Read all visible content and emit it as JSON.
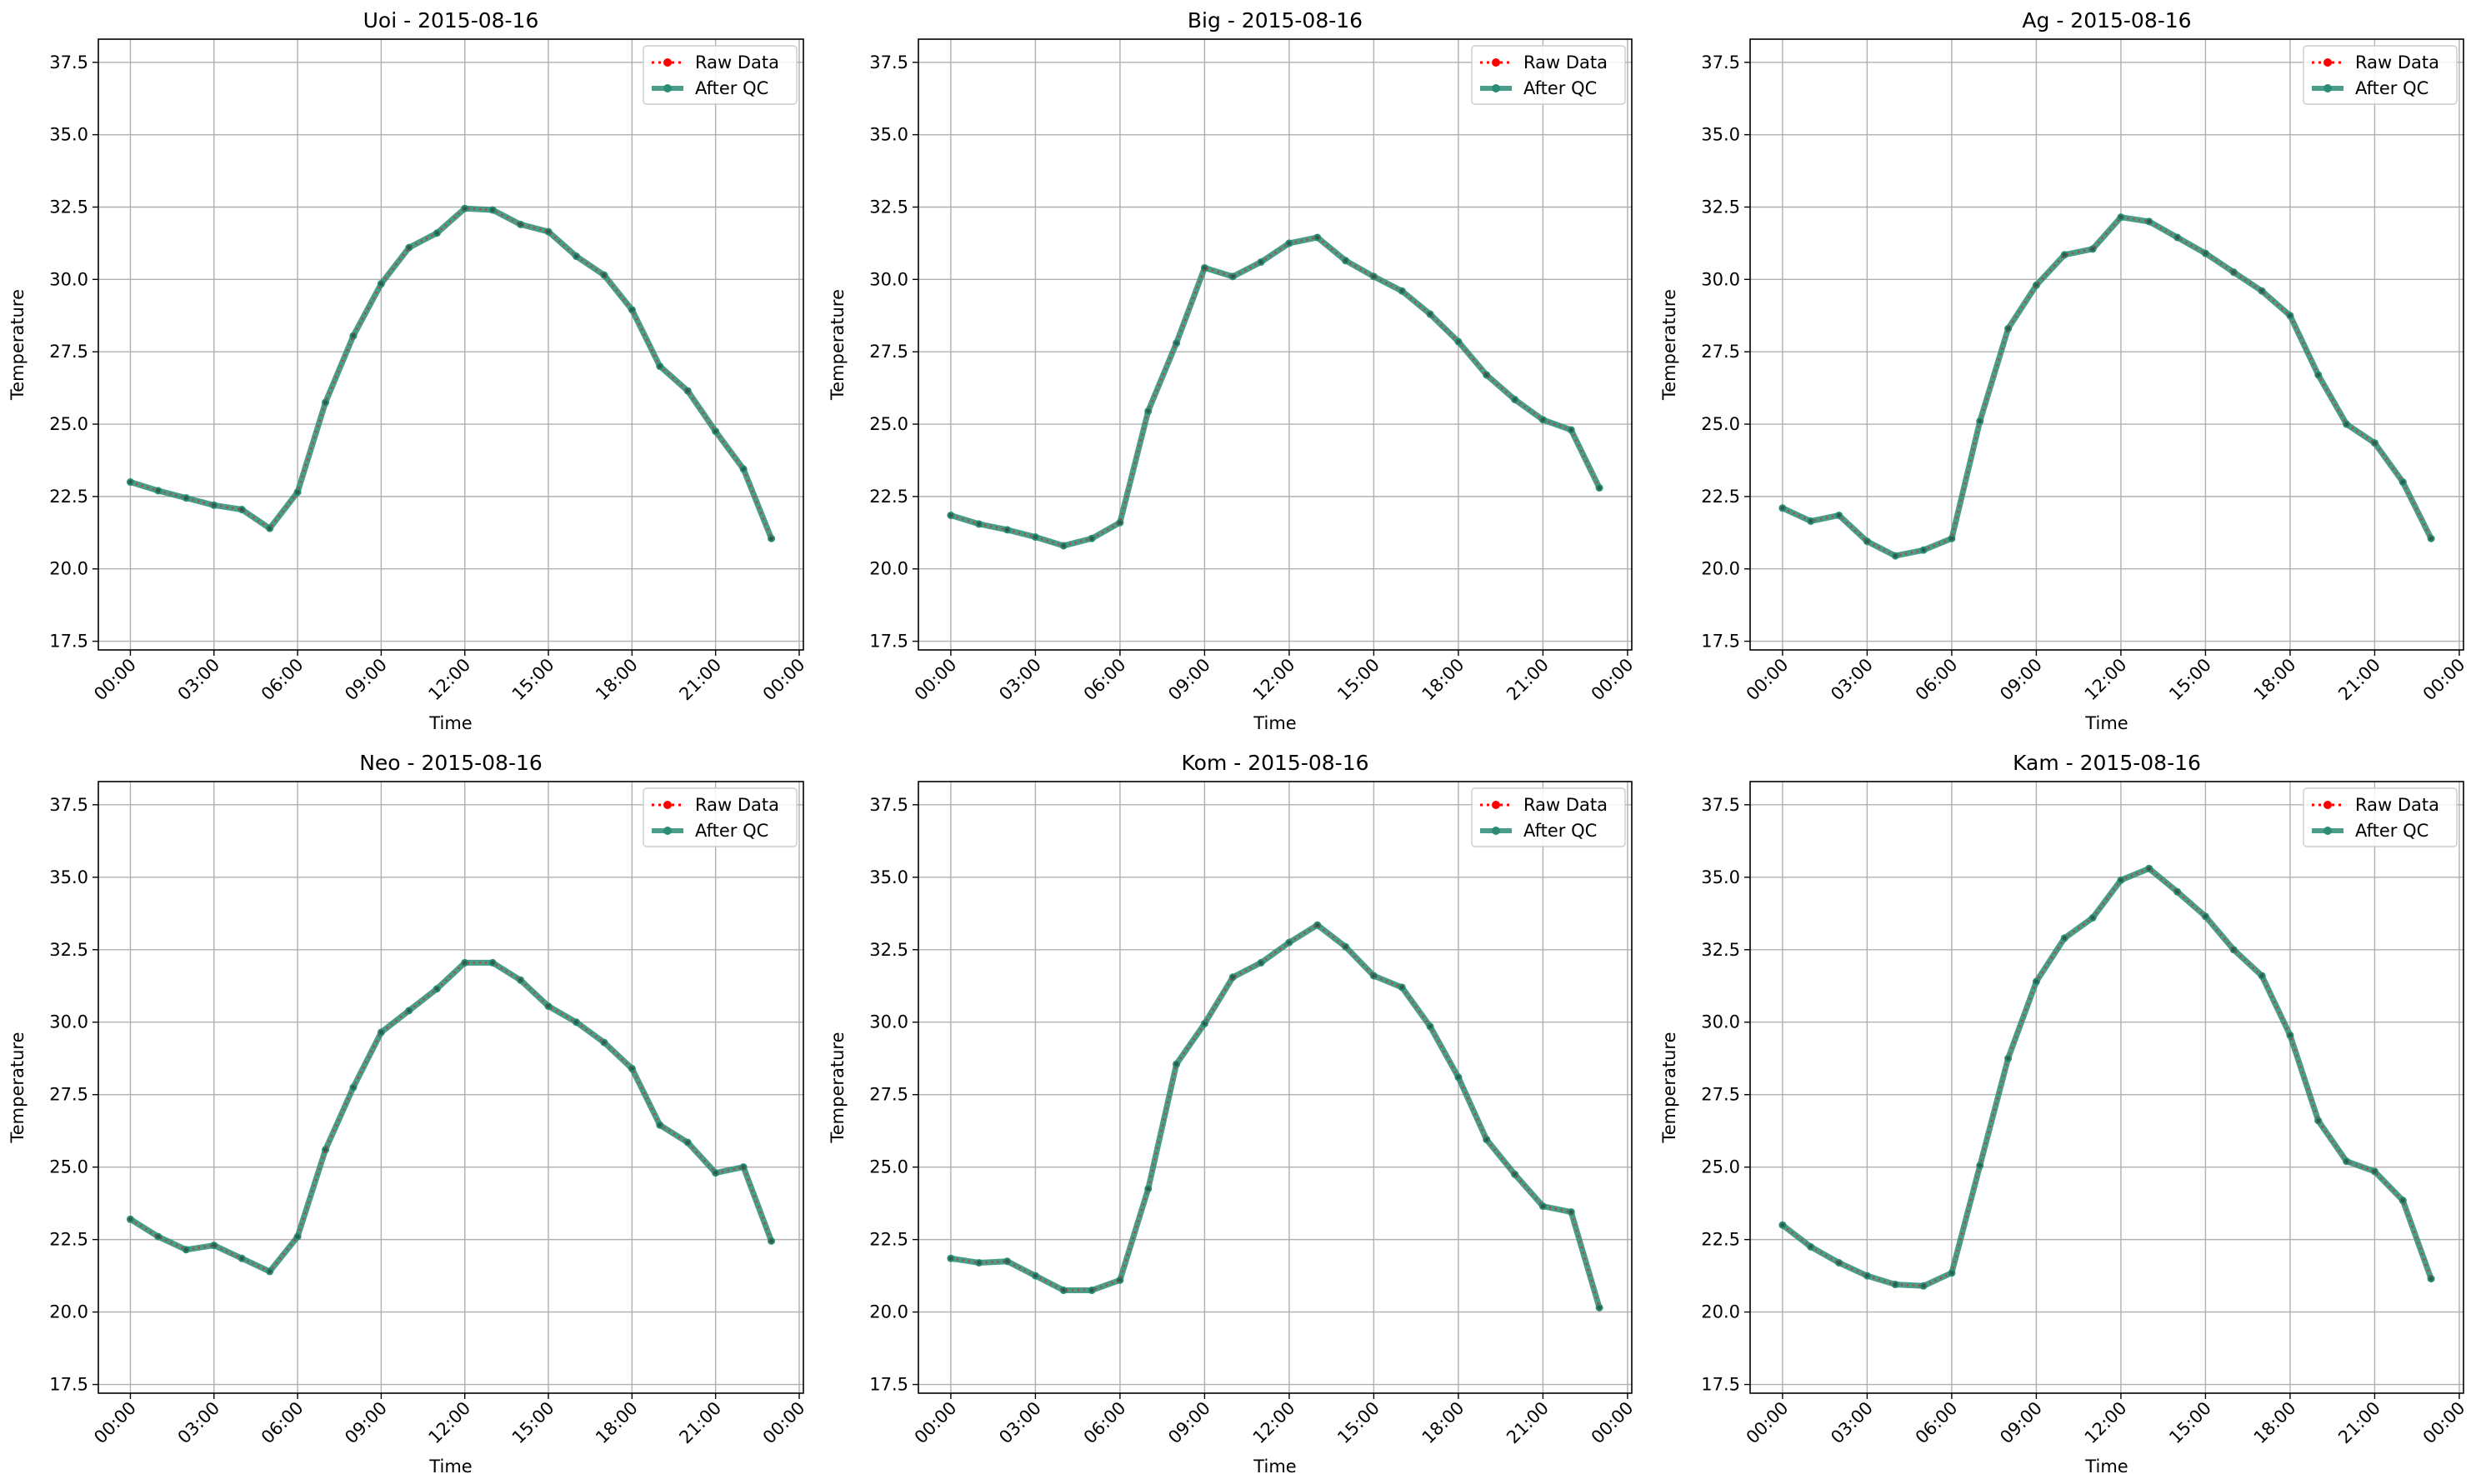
{
  "chart_data": [
    {
      "type": "line",
      "title": "Uoi - 2015-08-16",
      "xlabel": "Time",
      "ylabel": "Temperature",
      "ylim": [
        17.2,
        38.3
      ],
      "xlim_hours": [
        -1.15,
        24.15
      ],
      "yticks": [
        17.5,
        20.0,
        22.5,
        25.0,
        27.5,
        30.0,
        32.5,
        35.0,
        37.5
      ],
      "xtick_hours": [
        0,
        3,
        6,
        9,
        12,
        15,
        18,
        21,
        24
      ],
      "xtick_labels": [
        "00:00",
        "03:00",
        "06:00",
        "09:00",
        "12:00",
        "15:00",
        "18:00",
        "21:00",
        "00:00"
      ],
      "grid": true,
      "legend_position": "top-right",
      "hours": [
        0,
        1,
        2,
        3,
        4,
        5,
        6,
        7,
        8,
        9,
        10,
        11,
        12,
        13,
        14,
        15,
        16,
        17,
        18,
        19,
        20,
        21,
        22,
        23
      ],
      "series": [
        {
          "name": "Raw Data",
          "color": "#ff0000",
          "style": "dotted",
          "values": [
            23.0,
            22.7,
            22.45,
            22.2,
            22.05,
            21.4,
            22.65,
            25.75,
            28.05,
            29.85,
            31.1,
            31.6,
            32.45,
            32.4,
            31.9,
            31.65,
            30.8,
            30.15,
            28.95,
            27.0,
            26.15,
            24.75,
            23.45,
            21.05
          ]
        },
        {
          "name": "After QC",
          "color": "#2a8c74",
          "style": "solid",
          "values": [
            23.0,
            22.7,
            22.45,
            22.2,
            22.05,
            21.4,
            22.65,
            25.75,
            28.05,
            29.85,
            31.1,
            31.6,
            32.45,
            32.4,
            31.9,
            31.65,
            30.8,
            30.15,
            28.95,
            27.0,
            26.15,
            24.75,
            23.45,
            21.05
          ]
        }
      ]
    },
    {
      "type": "line",
      "title": "Big - 2015-08-16",
      "xlabel": "Time",
      "ylabel": "Temperature",
      "ylim": [
        17.2,
        38.3
      ],
      "xlim_hours": [
        -1.15,
        24.15
      ],
      "yticks": [
        17.5,
        20.0,
        22.5,
        25.0,
        27.5,
        30.0,
        32.5,
        35.0,
        37.5
      ],
      "xtick_hours": [
        0,
        3,
        6,
        9,
        12,
        15,
        18,
        21,
        24
      ],
      "xtick_labels": [
        "00:00",
        "03:00",
        "06:00",
        "09:00",
        "12:00",
        "15:00",
        "18:00",
        "21:00",
        "00:00"
      ],
      "grid": true,
      "legend_position": "top-right",
      "hours": [
        0,
        1,
        2,
        3,
        4,
        5,
        6,
        7,
        8,
        9,
        10,
        11,
        12,
        13,
        14,
        15,
        16,
        17,
        18,
        19,
        20,
        21,
        22,
        23
      ],
      "series": [
        {
          "name": "Raw Data",
          "color": "#ff0000",
          "style": "dotted",
          "values": [
            21.85,
            21.55,
            21.35,
            21.1,
            20.8,
            21.05,
            21.6,
            25.45,
            27.8,
            30.4,
            30.1,
            30.6,
            31.25,
            31.45,
            30.65,
            30.1,
            29.6,
            28.8,
            27.85,
            26.7,
            25.85,
            25.15,
            24.8,
            22.8
          ]
        },
        {
          "name": "After QC",
          "color": "#2a8c74",
          "style": "solid",
          "values": [
            21.85,
            21.55,
            21.35,
            21.1,
            20.8,
            21.05,
            21.6,
            25.45,
            27.8,
            30.4,
            30.1,
            30.6,
            31.25,
            31.45,
            30.65,
            30.1,
            29.6,
            28.8,
            27.85,
            26.7,
            25.85,
            25.15,
            24.8,
            22.8
          ]
        }
      ]
    },
    {
      "type": "line",
      "title": "Ag - 2015-08-16",
      "xlabel": "Time",
      "ylabel": "Temperature",
      "ylim": [
        17.2,
        38.3
      ],
      "xlim_hours": [
        -1.15,
        24.15
      ],
      "yticks": [
        17.5,
        20.0,
        22.5,
        25.0,
        27.5,
        30.0,
        32.5,
        35.0,
        37.5
      ],
      "xtick_hours": [
        0,
        3,
        6,
        9,
        12,
        15,
        18,
        21,
        24
      ],
      "xtick_labels": [
        "00:00",
        "03:00",
        "06:00",
        "09:00",
        "12:00",
        "15:00",
        "18:00",
        "21:00",
        "00:00"
      ],
      "grid": true,
      "legend_position": "top-right",
      "hours": [
        0,
        1,
        2,
        3,
        4,
        5,
        6,
        7,
        8,
        9,
        10,
        11,
        12,
        13,
        14,
        15,
        16,
        17,
        18,
        19,
        20,
        21,
        22,
        23
      ],
      "series": [
        {
          "name": "Raw Data",
          "color": "#ff0000",
          "style": "dotted",
          "values": [
            22.1,
            21.65,
            21.85,
            20.95,
            20.45,
            20.65,
            21.05,
            25.1,
            28.3,
            29.8,
            30.85,
            31.05,
            32.15,
            32.0,
            31.45,
            30.9,
            30.25,
            29.6,
            28.75,
            26.7,
            25.0,
            24.35,
            23.0,
            21.05
          ]
        },
        {
          "name": "After QC",
          "color": "#2a8c74",
          "style": "solid",
          "values": [
            22.1,
            21.65,
            21.85,
            20.95,
            20.45,
            20.65,
            21.05,
            25.1,
            28.3,
            29.8,
            30.85,
            31.05,
            32.15,
            32.0,
            31.45,
            30.9,
            30.25,
            29.6,
            28.75,
            26.7,
            25.0,
            24.35,
            23.0,
            21.05
          ]
        }
      ]
    },
    {
      "type": "line",
      "title": "Neo - 2015-08-16",
      "xlabel": "Time",
      "ylabel": "Temperature",
      "ylim": [
        17.2,
        38.3
      ],
      "xlim_hours": [
        -1.15,
        24.15
      ],
      "yticks": [
        17.5,
        20.0,
        22.5,
        25.0,
        27.5,
        30.0,
        32.5,
        35.0,
        37.5
      ],
      "xtick_hours": [
        0,
        3,
        6,
        9,
        12,
        15,
        18,
        21,
        24
      ],
      "xtick_labels": [
        "00:00",
        "03:00",
        "06:00",
        "09:00",
        "12:00",
        "15:00",
        "18:00",
        "21:00",
        "00:00"
      ],
      "grid": true,
      "legend_position": "top-right",
      "hours": [
        0,
        1,
        2,
        3,
        4,
        5,
        6,
        7,
        8,
        9,
        10,
        11,
        12,
        13,
        14,
        15,
        16,
        17,
        18,
        19,
        20,
        21,
        22,
        23
      ],
      "series": [
        {
          "name": "Raw Data",
          "color": "#ff0000",
          "style": "dotted",
          "values": [
            23.2,
            22.6,
            22.15,
            22.3,
            21.85,
            21.4,
            22.6,
            25.6,
            27.75,
            29.65,
            30.4,
            31.15,
            32.05,
            32.05,
            31.45,
            30.55,
            30.0,
            29.3,
            28.4,
            26.45,
            25.85,
            24.8,
            25.0,
            22.45
          ]
        },
        {
          "name": "After QC",
          "color": "#2a8c74",
          "style": "solid",
          "values": [
            23.2,
            22.6,
            22.15,
            22.3,
            21.85,
            21.4,
            22.6,
            25.6,
            27.75,
            29.65,
            30.4,
            31.15,
            32.05,
            32.05,
            31.45,
            30.55,
            30.0,
            29.3,
            28.4,
            26.45,
            25.85,
            24.8,
            25.0,
            22.45
          ]
        }
      ]
    },
    {
      "type": "line",
      "title": "Kom - 2015-08-16",
      "xlabel": "Time",
      "ylabel": "Temperature",
      "ylim": [
        17.2,
        38.3
      ],
      "xlim_hours": [
        -1.15,
        24.15
      ],
      "yticks": [
        17.5,
        20.0,
        22.5,
        25.0,
        27.5,
        30.0,
        32.5,
        35.0,
        37.5
      ],
      "xtick_hours": [
        0,
        3,
        6,
        9,
        12,
        15,
        18,
        21,
        24
      ],
      "xtick_labels": [
        "00:00",
        "03:00",
        "06:00",
        "09:00",
        "12:00",
        "15:00",
        "18:00",
        "21:00",
        "00:00"
      ],
      "grid": true,
      "legend_position": "top-right",
      "hours": [
        0,
        1,
        2,
        3,
        4,
        5,
        6,
        7,
        8,
        9,
        10,
        11,
        12,
        13,
        14,
        15,
        16,
        17,
        18,
        19,
        20,
        21,
        22,
        23
      ],
      "series": [
        {
          "name": "Raw Data",
          "color": "#ff0000",
          "style": "dotted",
          "values": [
            21.85,
            21.7,
            21.75,
            21.25,
            20.75,
            20.75,
            21.1,
            24.25,
            28.55,
            29.95,
            31.55,
            32.05,
            32.75,
            33.35,
            32.6,
            31.6,
            31.2,
            29.85,
            28.1,
            25.95,
            24.75,
            23.65,
            23.45,
            20.15
          ]
        },
        {
          "name": "After QC",
          "color": "#2a8c74",
          "style": "solid",
          "values": [
            21.85,
            21.7,
            21.75,
            21.25,
            20.75,
            20.75,
            21.1,
            24.25,
            28.55,
            29.95,
            31.55,
            32.05,
            32.75,
            33.35,
            32.6,
            31.6,
            31.2,
            29.85,
            28.1,
            25.95,
            24.75,
            23.65,
            23.45,
            20.15
          ]
        }
      ]
    },
    {
      "type": "line",
      "title": "Kam - 2015-08-16",
      "xlabel": "Time",
      "ylabel": "Temperature",
      "ylim": [
        17.2,
        38.3
      ],
      "xlim_hours": [
        -1.15,
        24.15
      ],
      "yticks": [
        17.5,
        20.0,
        22.5,
        25.0,
        27.5,
        30.0,
        32.5,
        35.0,
        37.5
      ],
      "xtick_hours": [
        0,
        3,
        6,
        9,
        12,
        15,
        18,
        21,
        24
      ],
      "xtick_labels": [
        "00:00",
        "03:00",
        "06:00",
        "09:00",
        "12:00",
        "15:00",
        "18:00",
        "21:00",
        "00:00"
      ],
      "grid": true,
      "legend_position": "top-right",
      "hours": [
        0,
        1,
        2,
        3,
        4,
        5,
        6,
        7,
        8,
        9,
        10,
        11,
        12,
        13,
        14,
        15,
        16,
        17,
        18,
        19,
        20,
        21,
        22,
        23
      ],
      "series": [
        {
          "name": "Raw Data",
          "color": "#ff0000",
          "style": "dotted",
          "values": [
            23.0,
            22.25,
            21.7,
            21.25,
            20.95,
            20.9,
            21.35,
            25.05,
            28.75,
            31.4,
            32.9,
            33.6,
            34.9,
            35.3,
            34.5,
            33.65,
            32.5,
            31.6,
            29.55,
            26.6,
            25.2,
            24.85,
            23.85,
            21.15
          ]
        },
        {
          "name": "After QC",
          "color": "#2a8c74",
          "style": "solid",
          "values": [
            23.0,
            22.25,
            21.7,
            21.25,
            20.95,
            20.9,
            21.35,
            25.05,
            28.75,
            31.4,
            32.9,
            33.6,
            34.9,
            35.3,
            34.5,
            33.65,
            32.5,
            31.6,
            29.55,
            26.6,
            25.2,
            24.85,
            23.85,
            21.15
          ]
        }
      ]
    }
  ]
}
